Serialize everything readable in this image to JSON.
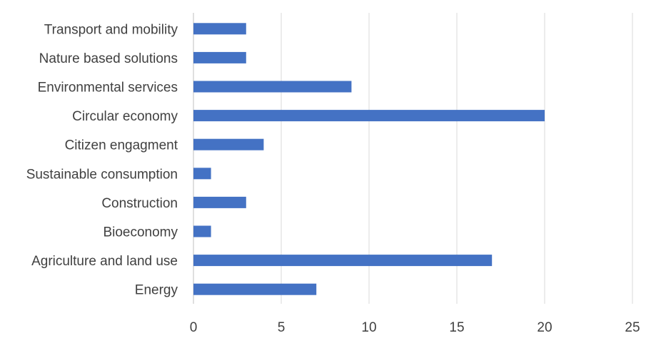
{
  "chart_data": {
    "type": "bar",
    "orientation": "horizontal",
    "title": "",
    "xlabel": "",
    "ylabel": "",
    "categories": [
      "Transport and mobility",
      "Nature based solutions",
      "Environmental services",
      "Circular economy",
      "Citizen engagment",
      "Sustainable consumption",
      "Construction",
      "Bioeconomy",
      "Agriculture and land use",
      "Energy"
    ],
    "values": [
      3,
      3,
      9,
      20,
      4,
      1,
      3,
      1,
      17,
      7
    ],
    "xlim": [
      0,
      25
    ],
    "xticks": [
      0,
      5,
      10,
      15,
      20,
      25
    ],
    "grid": "vertical",
    "legend": "none",
    "bar_color": "#4472c4"
  }
}
